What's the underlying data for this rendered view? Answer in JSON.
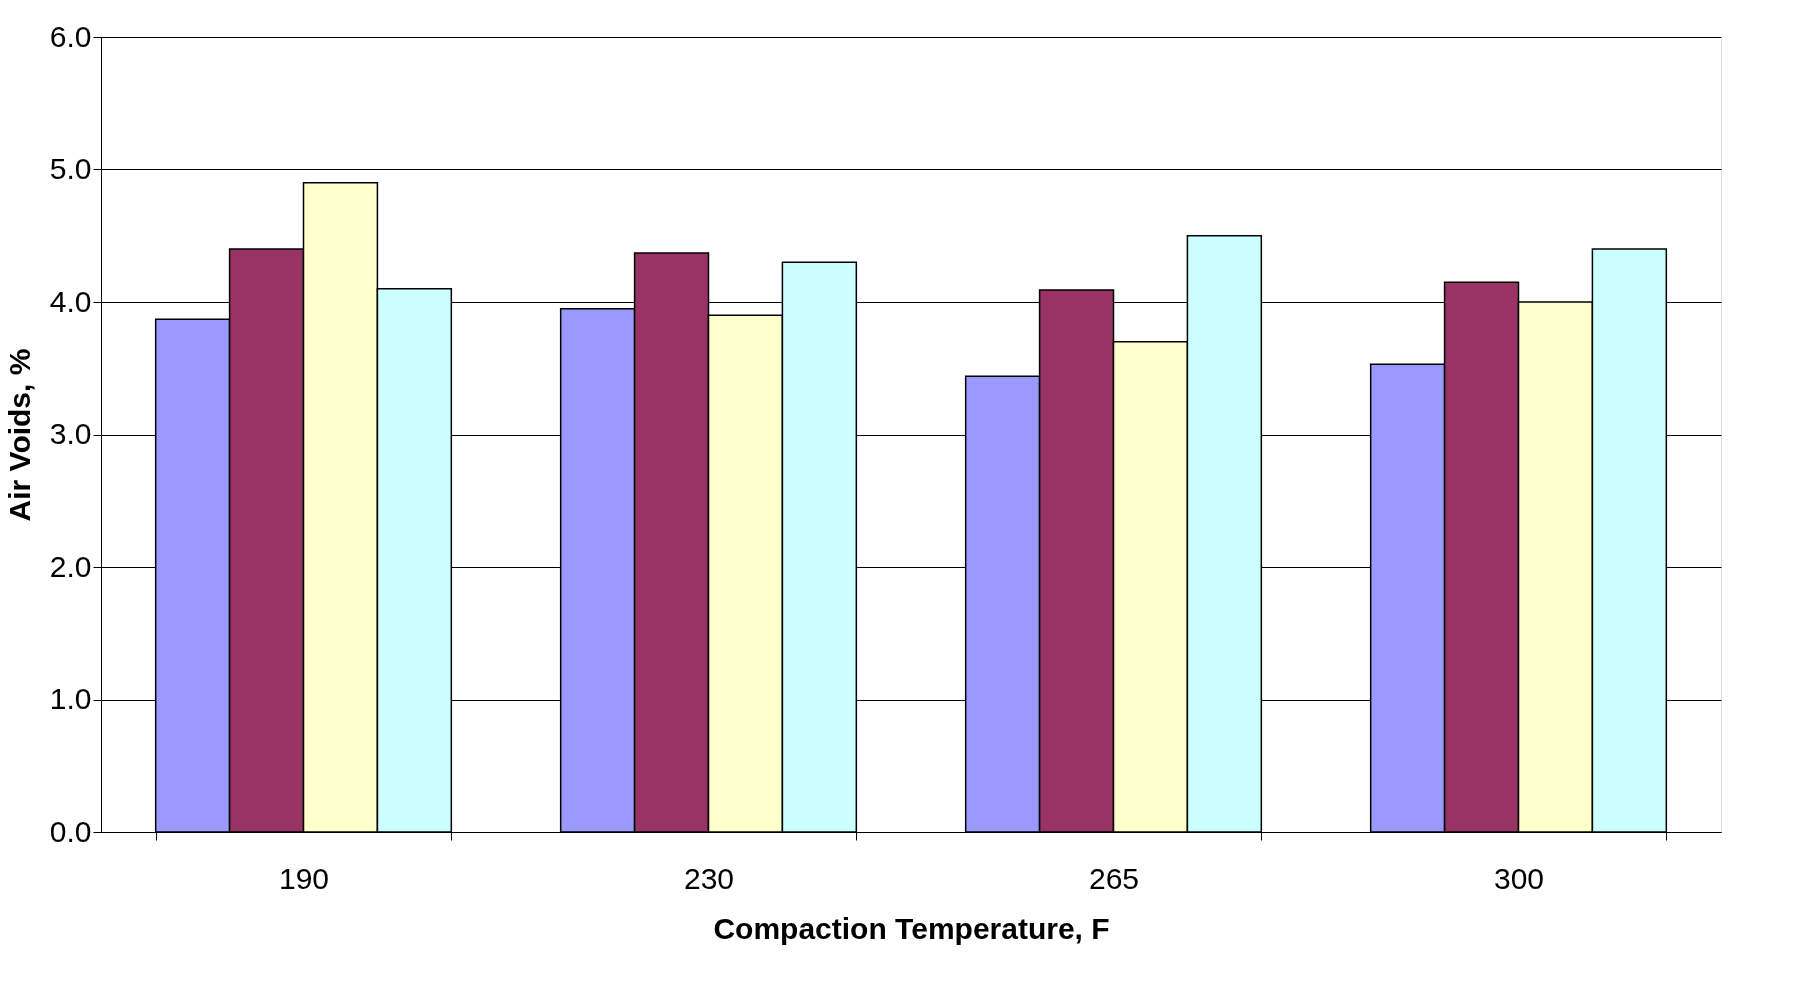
{
  "chart_data": {
    "type": "bar",
    "xlabel": "Compaction Temperature, F",
    "ylabel": "Air Voids, %",
    "categories": [
      "190",
      "230",
      "265",
      "300"
    ],
    "series": [
      {
        "color": "#9999ff",
        "values": [
          3.87,
          3.95,
          3.44,
          3.53
        ]
      },
      {
        "color": "#993366",
        "values": [
          4.4,
          4.37,
          4.09,
          4.15
        ]
      },
      {
        "color": "#ffffcc",
        "values": [
          4.9,
          3.9,
          3.7,
          4.0
        ]
      },
      {
        "color": "#ccffff",
        "values": [
          4.1,
          4.3,
          4.5,
          4.4
        ]
      }
    ],
    "ylim": [
      0,
      6
    ],
    "yticks": [
      {
        "value": 0,
        "label": "0.0"
      },
      {
        "value": 1,
        "label": "1.0"
      },
      {
        "value": 2,
        "label": "2.0"
      },
      {
        "value": 3,
        "label": "3.0"
      },
      {
        "value": 4,
        "label": "4.0"
      },
      {
        "value": 5,
        "label": "5.0"
      },
      {
        "value": 6,
        "label": "6.0"
      }
    ],
    "grid": "y",
    "legend": false
  }
}
